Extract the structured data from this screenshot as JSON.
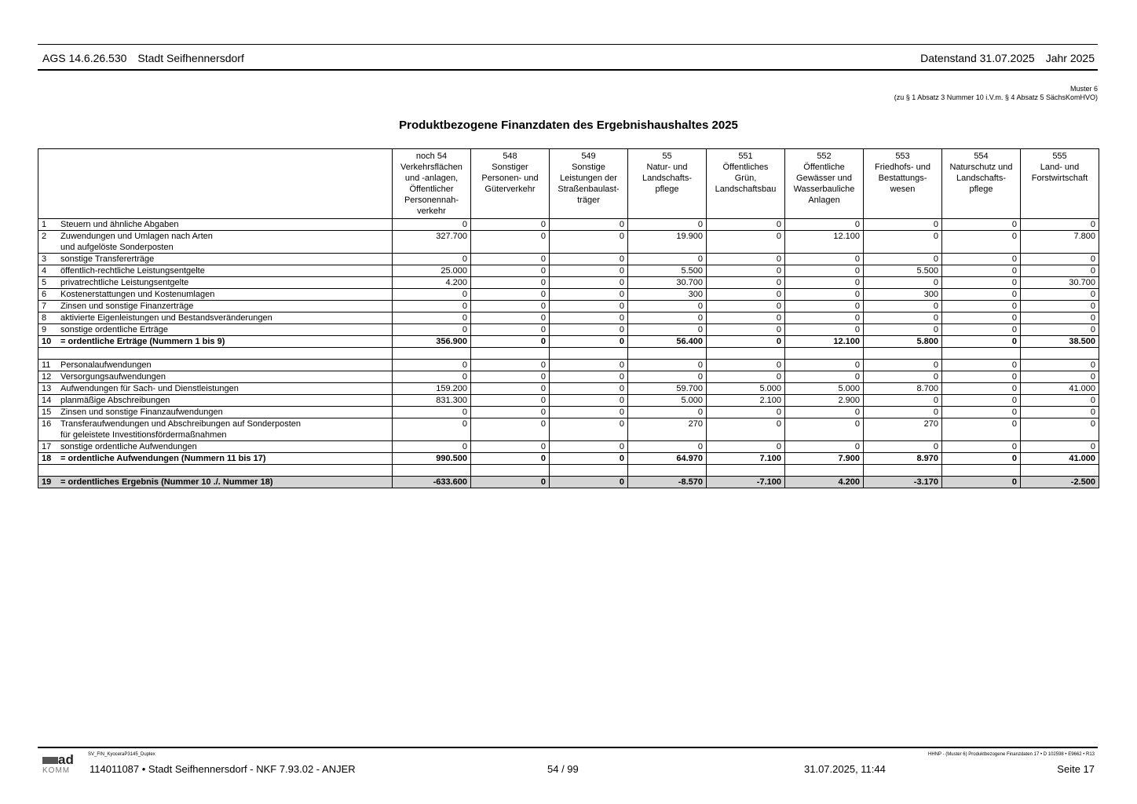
{
  "header": {
    "ags": "AGS 14.6.26.530",
    "city": "Stadt Seifhennersdorf",
    "datenstand": "Datenstand 31.07.2025",
    "jahr": "Jahr 2025"
  },
  "muster": {
    "line1": "Muster 6",
    "line2": "(zu § 1 Absatz 3 Nummer 10 i.V.m. § 4 Absatz 5 SächsKomHVO)"
  },
  "title": "Produktbezogene Finanzdaten des Ergebnishaushaltes 2025",
  "columns": [
    "noch 54\nVerkehrsflächen\nund -anlagen,\nÖffentlicher\nPersonennah-\nverkehr",
    "548\nSonstiger\nPersonen- und\nGüterverkehr",
    "549\nSonstige\nLeistungen der\nStraßenbaulast-\nträger",
    "55\nNatur- und\nLandschafts-\npflege",
    "551\nÖffentliches\nGrün,\nLandschaftsbau",
    "552\nÖffentliche\nGewässer und\nWasserbauliche\nAnlagen",
    "553\nFriedhofs- und\nBestattungs-\nwesen",
    "554\nNaturschutz und\nLandschafts-\npflege",
    "555\nLand- und\nForstwirtschaft"
  ],
  "rows": [
    {
      "no": "1",
      "label": "Steuern und ähnliche Abgaben",
      "values": [
        "0",
        "0",
        "0",
        "0",
        "0",
        "0",
        "0",
        "0",
        "0"
      ]
    },
    {
      "no": "2",
      "label": "Zuwendungen und Umlagen nach Arten\nund aufgelöste Sonderposten",
      "values": [
        "327.700",
        "0",
        "0",
        "19.900",
        "0",
        "12.100",
        "0",
        "0",
        "7.800"
      ]
    },
    {
      "no": "3",
      "label": "sonstige Transfererträge",
      "values": [
        "0",
        "0",
        "0",
        "0",
        "0",
        "0",
        "0",
        "0",
        "0"
      ]
    },
    {
      "no": "4",
      "label": "öffentlich-rechtliche Leistungsentgelte",
      "values": [
        "25.000",
        "0",
        "0",
        "5.500",
        "0",
        "0",
        "5.500",
        "0",
        "0"
      ]
    },
    {
      "no": "5",
      "label": "privatrechtliche Leistungsentgelte",
      "values": [
        "4.200",
        "0",
        "0",
        "30.700",
        "0",
        "0",
        "0",
        "0",
        "30.700"
      ]
    },
    {
      "no": "6",
      "label": "Kostenerstattungen und Kostenumlagen",
      "values": [
        "0",
        "0",
        "0",
        "300",
        "0",
        "0",
        "300",
        "0",
        "0"
      ]
    },
    {
      "no": "7",
      "label": "Zinsen und sonstige Finanzerträge",
      "values": [
        "0",
        "0",
        "0",
        "0",
        "0",
        "0",
        "0",
        "0",
        "0"
      ]
    },
    {
      "no": "8",
      "label": "aktivierte Eigenleistungen und Bestandsveränderungen",
      "values": [
        "0",
        "0",
        "0",
        "0",
        "0",
        "0",
        "0",
        "0",
        "0"
      ]
    },
    {
      "no": "9",
      "label": "sonstige ordentliche Erträge",
      "values": [
        "0",
        "0",
        "0",
        "0",
        "0",
        "0",
        "0",
        "0",
        "0"
      ]
    },
    {
      "no": "10",
      "label": "= ordentliche Erträge (Nummern 1 bis 9)",
      "type": "sum",
      "values": [
        "356.900",
        "0",
        "0",
        "56.400",
        "0",
        "12.100",
        "5.800",
        "0",
        "38.500"
      ]
    },
    {
      "type": "blank"
    },
    {
      "no": "11",
      "label": "Personalaufwendungen",
      "values": [
        "0",
        "0",
        "0",
        "0",
        "0",
        "0",
        "0",
        "0",
        "0"
      ]
    },
    {
      "no": "12",
      "label": "Versorgungsaufwendungen",
      "values": [
        "0",
        "0",
        "0",
        "0",
        "0",
        "0",
        "0",
        "0",
        "0"
      ]
    },
    {
      "no": "13",
      "label": "Aufwendungen für Sach- und Dienstleistungen",
      "values": [
        "159.200",
        "0",
        "0",
        "59.700",
        "5.000",
        "5.000",
        "8.700",
        "0",
        "41.000"
      ]
    },
    {
      "no": "14",
      "label": "planmäßige Abschreibungen",
      "values": [
        "831.300",
        "0",
        "0",
        "5.000",
        "2.100",
        "2.900",
        "0",
        "0",
        "0"
      ]
    },
    {
      "no": "15",
      "label": "Zinsen und sonstige Finanzaufwendungen",
      "values": [
        "0",
        "0",
        "0",
        "0",
        "0",
        "0",
        "0",
        "0",
        "0"
      ]
    },
    {
      "no": "16",
      "label": "Transferaufwendungen und Abschreibungen auf Sonderposten\nfür geleistete Investitionsfördermaßnahmen",
      "values": [
        "0",
        "0",
        "0",
        "270",
        "0",
        "0",
        "270",
        "0",
        "0"
      ]
    },
    {
      "no": "17",
      "label": "sonstige ordentliche Aufwendungen",
      "values": [
        "0",
        "0",
        "0",
        "0",
        "0",
        "0",
        "0",
        "0",
        "0"
      ]
    },
    {
      "no": "18",
      "label": "= ordentliche Aufwendungen (Nummern 11 bis 17)",
      "type": "sum",
      "values": [
        "990.500",
        "0",
        "0",
        "64.970",
        "7.100",
        "7.900",
        "8.970",
        "0",
        "41.000"
      ]
    },
    {
      "type": "blank"
    },
    {
      "no": "19",
      "label": "= ordentliches Ergebnis (Nummer 10 ./. Nummer 18)",
      "type": "res",
      "values": [
        "-633.600",
        "0",
        "0",
        "-8.570",
        "-7.100",
        "4.200",
        "-3.170",
        "0",
        "-2.500"
      ]
    }
  ],
  "footer": {
    "printer": "SV_FIN_KyoceraP3145_Duplex",
    "report": "HHNP - (Muster 6) Produktbezogene Finanzdaten 17 • D 102598 • E9662 • R13",
    "logo": "ad KOMM",
    "info": "114011087 • Stadt Seifhennersdorf - NKF 7.93.02 - ANJER",
    "page_of": "54 / 99",
    "datetime": "31.07.2025, 11:44",
    "seite": "Seite 17"
  }
}
